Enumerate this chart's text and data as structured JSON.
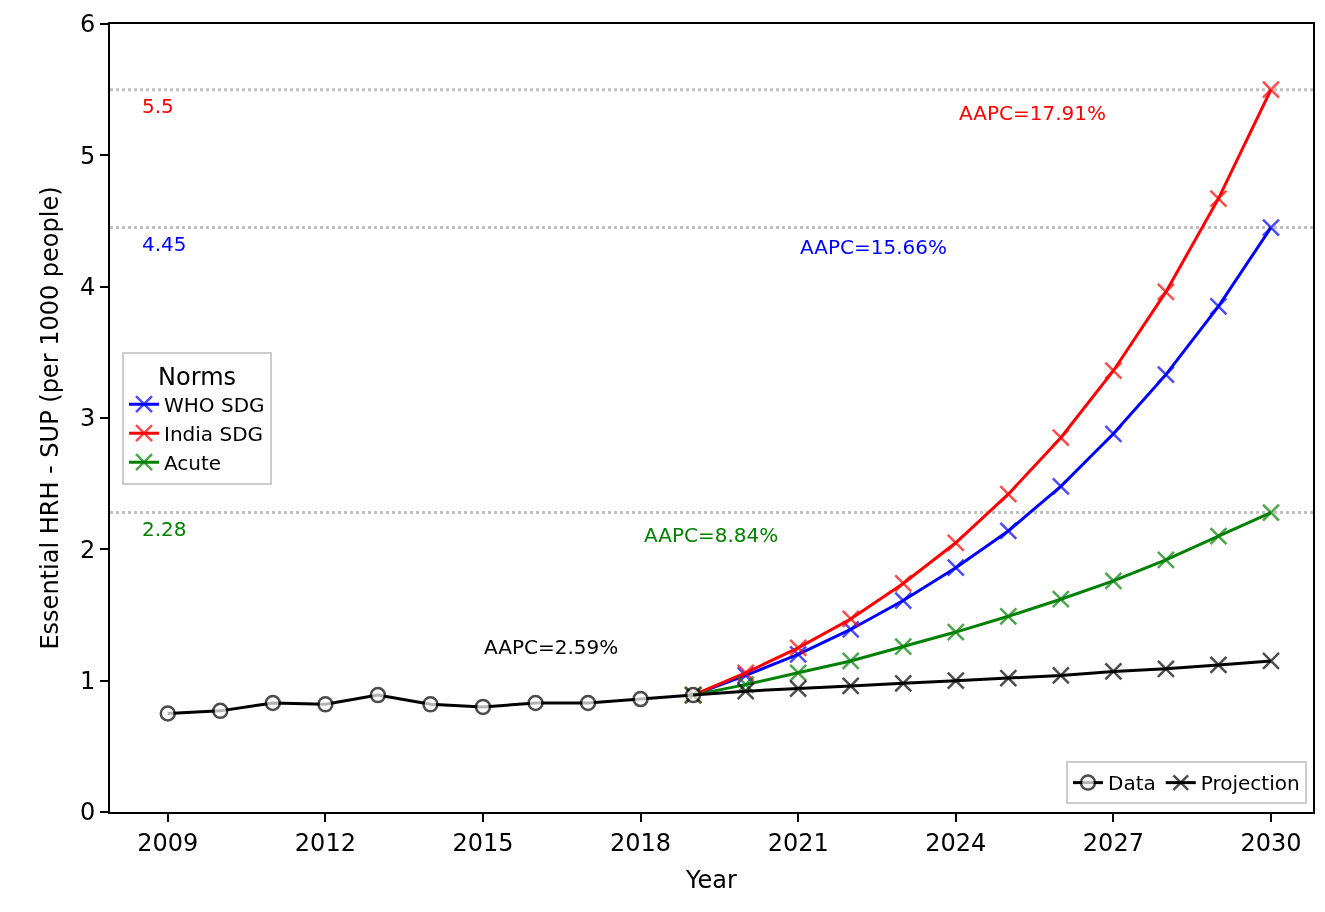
{
  "chart_data": {
    "type": "line",
    "xlabel": "Year",
    "ylabel": "Essential HRH - SUP (per 1000 people)",
    "legend_title": "Norms",
    "xlim": [
      2007.9,
      2030.8
    ],
    "xticks": [
      2009,
      2012,
      2015,
      2018,
      2021,
      2024,
      2027,
      2030
    ],
    "ylim": [
      0,
      6
    ],
    "yticks": [
      0,
      1,
      2,
      3,
      4,
      5,
      6
    ],
    "grid": false,
    "legend": [
      "left",
      "bottom right"
    ],
    "series": [
      {
        "name": "WHO SDG",
        "color": "#0000ff",
        "marker": "cross",
        "x": [
          2019,
          2020,
          2021,
          2022,
          2023,
          2024,
          2025,
          2026,
          2027,
          2028,
          2029,
          2030
        ],
        "values": [
          0.89,
          1.04,
          1.2,
          1.39,
          1.61,
          1.86,
          2.14,
          2.48,
          2.88,
          3.33,
          3.85,
          4.45
        ]
      },
      {
        "name": "India SDG",
        "color": "#ff0000",
        "marker": "cross",
        "x": [
          2019,
          2020,
          2021,
          2022,
          2023,
          2024,
          2025,
          2026,
          2027,
          2028,
          2029,
          2030
        ],
        "values": [
          0.89,
          1.06,
          1.25,
          1.47,
          1.74,
          2.05,
          2.42,
          2.85,
          3.36,
          3.96,
          4.67,
          5.5
        ]
      },
      {
        "name": "Acute",
        "color": "#008000",
        "marker": "cross",
        "x": [
          2019,
          2020,
          2021,
          2022,
          2023,
          2024,
          2025,
          2026,
          2027,
          2028,
          2029,
          2030
        ],
        "values": [
          0.89,
          0.97,
          1.06,
          1.15,
          1.26,
          1.37,
          1.49,
          1.62,
          1.76,
          1.92,
          2.1,
          2.28
        ]
      },
      {
        "name": "Data",
        "color": "#000000",
        "marker": "circle",
        "x": [
          2009,
          2010,
          2011,
          2012,
          2013,
          2014,
          2015,
          2016,
          2017,
          2018,
          2019
        ],
        "values": [
          0.75,
          0.77,
          0.83,
          0.82,
          0.89,
          0.82,
          0.8,
          0.83,
          0.83,
          0.86,
          0.89
        ]
      },
      {
        "name": "Projection",
        "color": "#000000",
        "marker": "cross",
        "x": [
          2019,
          2020,
          2021,
          2022,
          2023,
          2024,
          2025,
          2026,
          2027,
          2028,
          2029,
          2030
        ],
        "values": [
          0.89,
          0.92,
          0.94,
          0.96,
          0.98,
          1.0,
          1.02,
          1.04,
          1.07,
          1.09,
          1.12,
          1.15
        ]
      }
    ],
    "ref_lines": [
      {
        "axis": "y",
        "value": 5.5,
        "label": "5.5",
        "color": "#c0c0c0",
        "line_style": "dotted"
      },
      {
        "axis": "y",
        "value": 4.45,
        "label": "4.45",
        "color": "#c0c0c0",
        "line_style": "dotted"
      },
      {
        "axis": "y",
        "value": 2.28,
        "label": "2.28",
        "color": "#c0c0c0",
        "line_style": "dotted"
      }
    ],
    "annotations": [
      "AAPC=17.91%",
      "AAPC=15.66%",
      "AAPC=8.84%",
      "AAPC=2.59%"
    ]
  }
}
